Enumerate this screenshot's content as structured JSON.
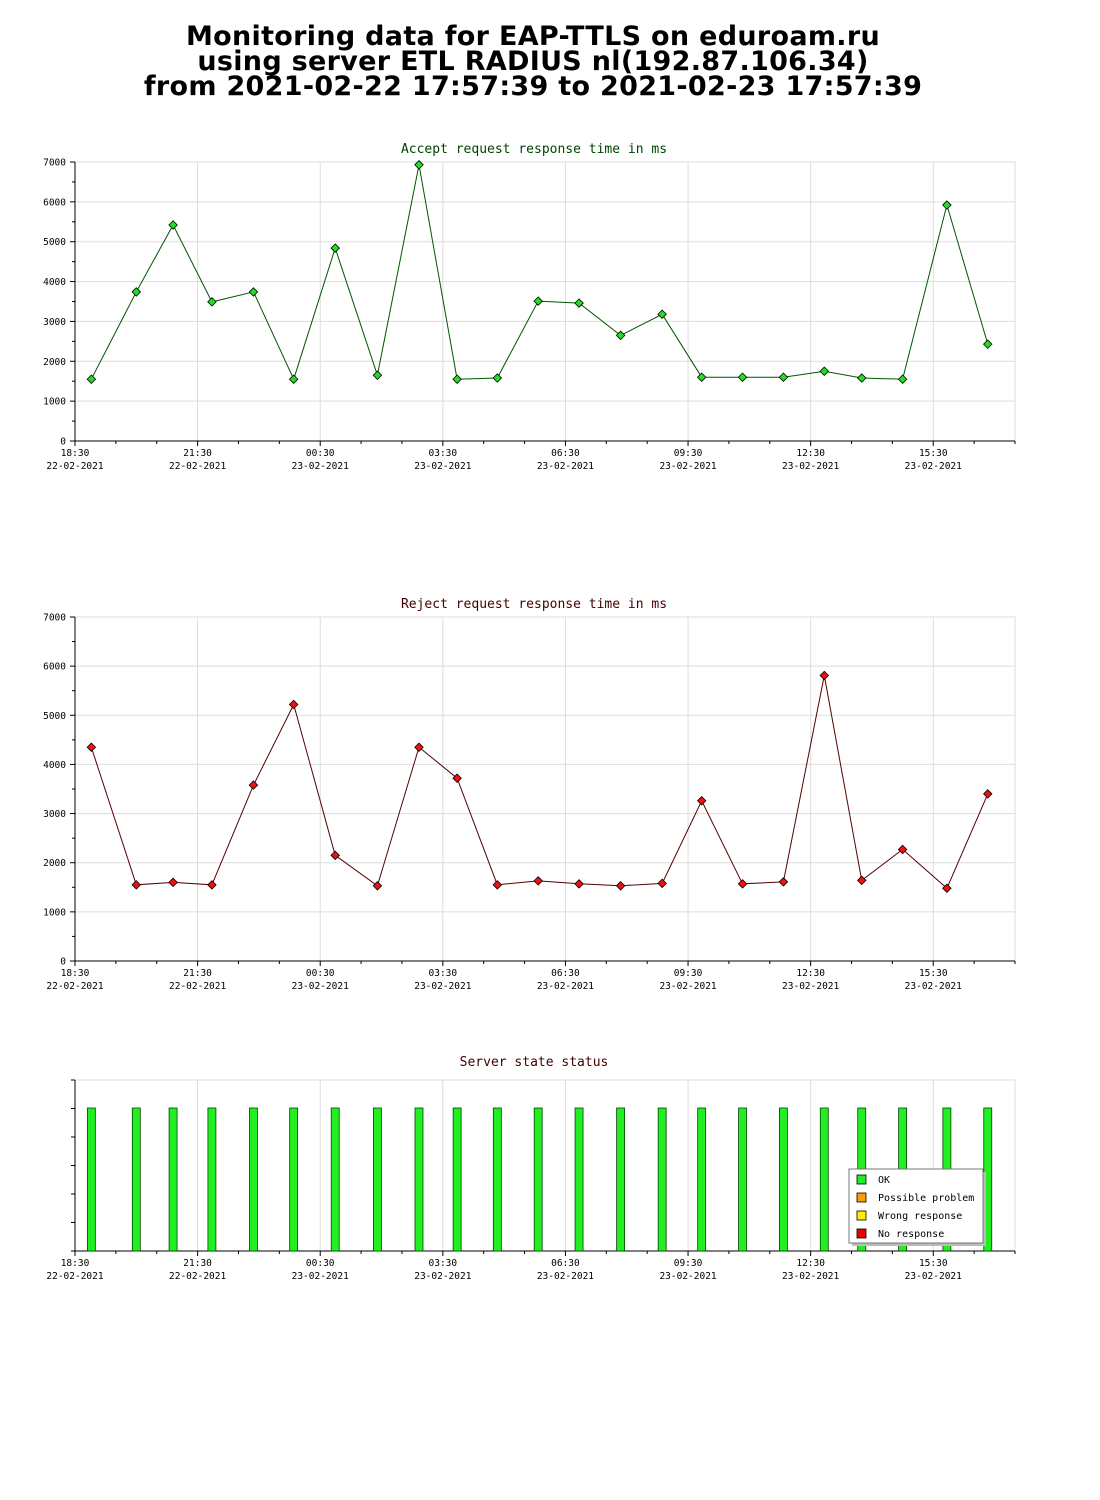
{
  "header": {
    "line1": "Monitoring data for EAP-TTLS on eduroam.ru",
    "line2": "using server ETL RADIUS nl(192.87.106.34)",
    "line3": "from 2021-02-22 17:57:39 to 2021-02-23 17:57:39"
  },
  "colors": {
    "accept_line": "#005500",
    "accept_marker": "#22dd22",
    "reject_line": "#550000",
    "reject_marker": "#ee1111",
    "accept_title": "#004400",
    "reject_title": "#440000",
    "state_title": "#440000",
    "ok": "#22ee22",
    "possible_problem": "#ff9900",
    "wrong_response": "#ffee00",
    "no_response": "#ee0000",
    "grid": "#dddddd"
  },
  "time_axis": {
    "labels": [
      {
        "time": "18:30",
        "date": "22-02-2021"
      },
      {
        "time": "21:30",
        "date": "22-02-2021"
      },
      {
        "time": "00:30",
        "date": "23-02-2021"
      },
      {
        "time": "03:30",
        "date": "23-02-2021"
      },
      {
        "time": "06:30",
        "date": "23-02-2021"
      },
      {
        "time": "09:30",
        "date": "23-02-2021"
      },
      {
        "time": "12:30",
        "date": "23-02-2021"
      },
      {
        "time": "15:30",
        "date": "23-02-2021"
      }
    ]
  },
  "chart_data": [
    {
      "type": "line",
      "title": "Accept request response time in ms",
      "xlabel": "",
      "ylabel": "",
      "ylim": [
        0,
        7000
      ],
      "yticks": [
        "0",
        "1000",
        "2000",
        "3000",
        "4000",
        "5000",
        "6000",
        "7000"
      ],
      "xlim": [
        "2021-02-22 18:30",
        "2021-02-23 17:30"
      ],
      "grid": true,
      "series": [
        {
          "x": [
            "2021-02-22 18:54",
            "2021-02-22 20:00",
            "2021-02-22 20:54",
            "2021-02-22 21:51",
            "2021-02-22 22:52",
            "2021-02-22 23:51",
            "2021-02-23 00:52",
            "2021-02-23 01:54",
            "2021-02-23 02:55",
            "2021-02-23 03:51",
            "2021-02-23 04:50",
            "2021-02-23 05:50",
            "2021-02-23 06:50",
            "2021-02-23 07:51",
            "2021-02-23 08:52",
            "2021-02-23 09:50",
            "2021-02-23 10:50",
            "2021-02-23 11:50",
            "2021-02-23 12:50",
            "2021-02-23 13:45",
            "2021-02-23 14:45",
            "2021-02-23 15:50",
            "2021-02-23 16:50"
          ],
          "values": [
            1550,
            3740,
            5420,
            3490,
            3740,
            1550,
            4840,
            1650,
            6930,
            1550,
            1580,
            3510,
            3460,
            2650,
            3180,
            1600,
            1600,
            1600,
            1750,
            1580,
            1550,
            5920,
            2430
          ]
        }
      ]
    },
    {
      "type": "line",
      "title": "Reject request response time in ms",
      "xlabel": "",
      "ylabel": "",
      "ylim": [
        0,
        7000
      ],
      "yticks": [
        "0",
        "1000",
        "2000",
        "3000",
        "4000",
        "5000",
        "6000",
        "7000"
      ],
      "xlim": [
        "2021-02-22 18:30",
        "2021-02-23 17:30"
      ],
      "grid": true,
      "series": [
        {
          "x": [
            "2021-02-22 18:54",
            "2021-02-22 20:00",
            "2021-02-22 20:54",
            "2021-02-22 21:51",
            "2021-02-22 22:52",
            "2021-02-22 23:51",
            "2021-02-23 00:52",
            "2021-02-23 01:54",
            "2021-02-23 02:55",
            "2021-02-23 03:51",
            "2021-02-23 04:50",
            "2021-02-23 05:50",
            "2021-02-23 06:50",
            "2021-02-23 07:51",
            "2021-02-23 08:52",
            "2021-02-23 09:50",
            "2021-02-23 10:50",
            "2021-02-23 11:50",
            "2021-02-23 12:50",
            "2021-02-23 13:45",
            "2021-02-23 14:45",
            "2021-02-23 15:50",
            "2021-02-23 16:50"
          ],
          "values": [
            4350,
            1550,
            1600,
            1550,
            3580,
            5220,
            2150,
            1530,
            4350,
            3720,
            1550,
            1630,
            1570,
            1530,
            1580,
            3260,
            1570,
            1610,
            5810,
            1640,
            2270,
            1480,
            3400
          ]
        }
      ]
    },
    {
      "type": "bar",
      "title": "Server state status",
      "xlabel": "",
      "ylabel": "",
      "xlim": [
        "2021-02-22 18:30",
        "2021-02-23 17:30"
      ],
      "grid": true,
      "legend": {
        "placement": "bottom-right",
        "entries": [
          "OK",
          "Possible problem",
          "Wrong response",
          "No response"
        ]
      },
      "series": [
        {
          "name": "OK",
          "x": [
            "2021-02-22 18:54",
            "2021-02-22 20:00",
            "2021-02-22 20:54",
            "2021-02-22 21:51",
            "2021-02-22 22:52",
            "2021-02-22 23:51",
            "2021-02-23 00:52",
            "2021-02-23 01:54",
            "2021-02-23 02:55",
            "2021-02-23 03:51",
            "2021-02-23 04:50",
            "2021-02-23 05:50",
            "2021-02-23 06:50",
            "2021-02-23 07:51",
            "2021-02-23 08:52",
            "2021-02-23 09:50",
            "2021-02-23 10:50",
            "2021-02-23 11:50",
            "2021-02-23 12:50",
            "2021-02-23 13:45",
            "2021-02-23 14:45",
            "2021-02-23 15:50",
            "2021-02-23 16:50"
          ],
          "values": [
            1,
            1,
            1,
            1,
            1,
            1,
            1,
            1,
            1,
            1,
            1,
            1,
            1,
            1,
            1,
            1,
            1,
            1,
            1,
            1,
            1,
            1,
            1
          ]
        }
      ]
    }
  ]
}
